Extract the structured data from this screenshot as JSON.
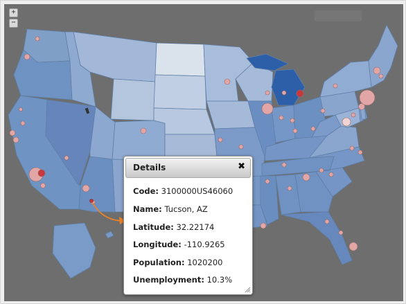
{
  "zoom": {
    "in_label": "+",
    "out_label": "−"
  },
  "details": {
    "title": "Details",
    "close_label": "✖",
    "rows": [
      {
        "key": "Code:",
        "value": "3100000US46060"
      },
      {
        "key": "Name:",
        "value": "Tucson, AZ"
      },
      {
        "key": "Latitude:",
        "value": "32.22174"
      },
      {
        "key": "Longitude:",
        "value": "-110.9265"
      },
      {
        "key": "Population:",
        "value": "1020200"
      },
      {
        "key": "Unemployment:",
        "value": "10.3%"
      }
    ]
  },
  "colors": {
    "background": "#6e6e6e",
    "state_border": "#5f7fa6",
    "choropleth_light": "#d9e1ea",
    "choropleth_mid": "#8fa9cc",
    "choropleth_dark": "#3f6fb0",
    "highlight_state": "#2c5fa8",
    "bubble_fill": "#e3a6a6",
    "bubble_selected": "#c8373b",
    "arrow": "#e9822a"
  },
  "icons": {
    "zoom_in": "plus-icon",
    "zoom_out": "minus-icon",
    "close": "close-icon",
    "resize": "resize-grip-icon",
    "pointer": "arrow-pointer-icon"
  }
}
